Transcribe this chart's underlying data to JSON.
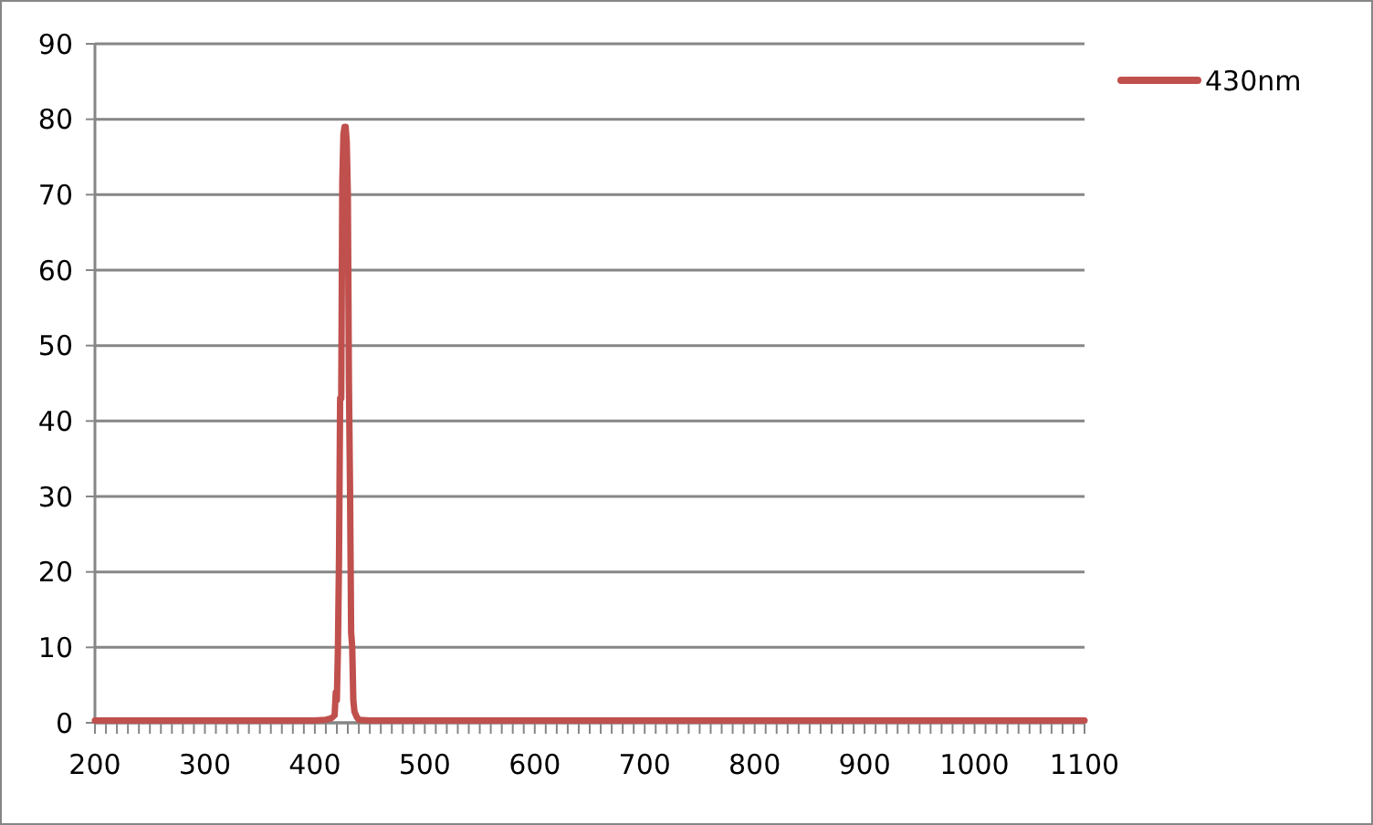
{
  "chart_data": {
    "type": "line",
    "x": [
      200,
      300,
      400,
      410,
      415,
      418,
      419,
      420,
      421,
      422,
      423,
      424,
      425,
      426,
      427,
      428,
      429,
      430,
      431,
      432,
      433,
      434,
      435,
      436,
      438,
      440,
      450,
      500,
      600,
      700,
      800,
      900,
      1000,
      1100
    ],
    "series": [
      {
        "name": "430nm",
        "color": "#c0504d",
        "values": [
          0.3,
          0.3,
          0.3,
          0.4,
          0.6,
          1,
          4,
          3,
          10,
          22,
          43,
          43,
          72,
          78,
          79,
          79,
          77,
          70,
          45,
          31,
          12,
          10,
          3,
          1.5,
          0.8,
          0.4,
          0.3,
          0.3,
          0.3,
          0.3,
          0.3,
          0.3,
          0.3,
          0.3
        ]
      }
    ],
    "xlim": [
      200,
      1100
    ],
    "ylim": [
      0,
      90
    ],
    "xticks": [
      200,
      {
        "value": 210,
        "label": null
      },
      {
        "value": 220,
        "label": null
      },
      {
        "value": 230,
        "label": null
      },
      {
        "value": 240,
        "label": null
      },
      {
        "value": 250,
        "label": null
      },
      {
        "value": 260,
        "label": null
      },
      {
        "value": 270,
        "label": null
      },
      {
        "value": 280,
        "label": null
      },
      {
        "value": 290,
        "label": null
      },
      300,
      {
        "value": 310,
        "label": null
      },
      {
        "value": 320,
        "label": null
      },
      {
        "value": 330,
        "label": null
      },
      {
        "value": 340,
        "label": null
      },
      {
        "value": 350,
        "label": null
      },
      {
        "value": 360,
        "label": null
      },
      {
        "value": 370,
        "label": null
      },
      {
        "value": 380,
        "label": null
      },
      {
        "value": 390,
        "label": null
      },
      400,
      {
        "value": 410,
        "label": null
      },
      {
        "value": 420,
        "label": null
      },
      {
        "value": 430,
        "label": null
      },
      {
        "value": 440,
        "label": null
      },
      {
        "value": 450,
        "label": null
      },
      {
        "value": 460,
        "label": null
      },
      {
        "value": 470,
        "label": null
      },
      {
        "value": 480,
        "label": null
      },
      {
        "value": 490,
        "label": null
      },
      500,
      {
        "value": 510,
        "label": null
      },
      {
        "value": 520,
        "label": null
      },
      {
        "value": 530,
        "label": null
      },
      {
        "value": 540,
        "label": null
      },
      {
        "value": 550,
        "label": null
      },
      {
        "value": 560,
        "label": null
      },
      {
        "value": 570,
        "label": null
      },
      {
        "value": 580,
        "label": null
      },
      {
        "value": 590,
        "label": null
      },
      600,
      {
        "value": 610,
        "label": null
      },
      {
        "value": 620,
        "label": null
      },
      {
        "value": 630,
        "label": null
      },
      {
        "value": 640,
        "label": null
      },
      {
        "value": 650,
        "label": null
      },
      {
        "value": 660,
        "label": null
      },
      {
        "value": 670,
        "label": null
      },
      {
        "value": 680,
        "label": null
      },
      {
        "value": 690,
        "label": null
      },
      700,
      {
        "value": 710,
        "label": null
      },
      {
        "value": 720,
        "label": null
      },
      {
        "value": 730,
        "label": null
      },
      {
        "value": 740,
        "label": null
      },
      {
        "value": 750,
        "label": null
      },
      {
        "value": 760,
        "label": null
      },
      {
        "value": 770,
        "label": null
      },
      {
        "value": 780,
        "label": null
      },
      {
        "value": 790,
        "label": null
      },
      800,
      {
        "value": 810,
        "label": null
      },
      {
        "value": 820,
        "label": null
      },
      {
        "value": 830,
        "label": null
      },
      {
        "value": 840,
        "label": null
      },
      {
        "value": 850,
        "label": null
      },
      {
        "value": 860,
        "label": null
      },
      {
        "value": 870,
        "label": null
      },
      {
        "value": 880,
        "label": null
      },
      {
        "value": 890,
        "label": null
      },
      900,
      {
        "value": 910,
        "label": null
      },
      {
        "value": 920,
        "label": null
      },
      {
        "value": 930,
        "label": null
      },
      {
        "value": 940,
        "label": null
      },
      {
        "value": 950,
        "label": null
      },
      {
        "value": 960,
        "label": null
      },
      {
        "value": 970,
        "label": null
      },
      {
        "value": 980,
        "label": null
      },
      {
        "value": 990,
        "label": null
      },
      1000,
      {
        "value": 1010,
        "label": null
      },
      {
        "value": 1020,
        "label": null
      },
      {
        "value": 1030,
        "label": null
      },
      {
        "value": 1040,
        "label": null
      },
      {
        "value": 1050,
        "label": null
      },
      {
        "value": 1060,
        "label": null
      },
      {
        "value": 1070,
        "label": null
      },
      {
        "value": 1080,
        "label": null
      },
      {
        "value": 1090,
        "label": null
      },
      1100
    ],
    "yticks": [
      0,
      10,
      20,
      30,
      40,
      50,
      60,
      70,
      80,
      90
    ],
    "grid": "y",
    "legend": "top right",
    "marker": "none",
    "line_style": "solid"
  }
}
